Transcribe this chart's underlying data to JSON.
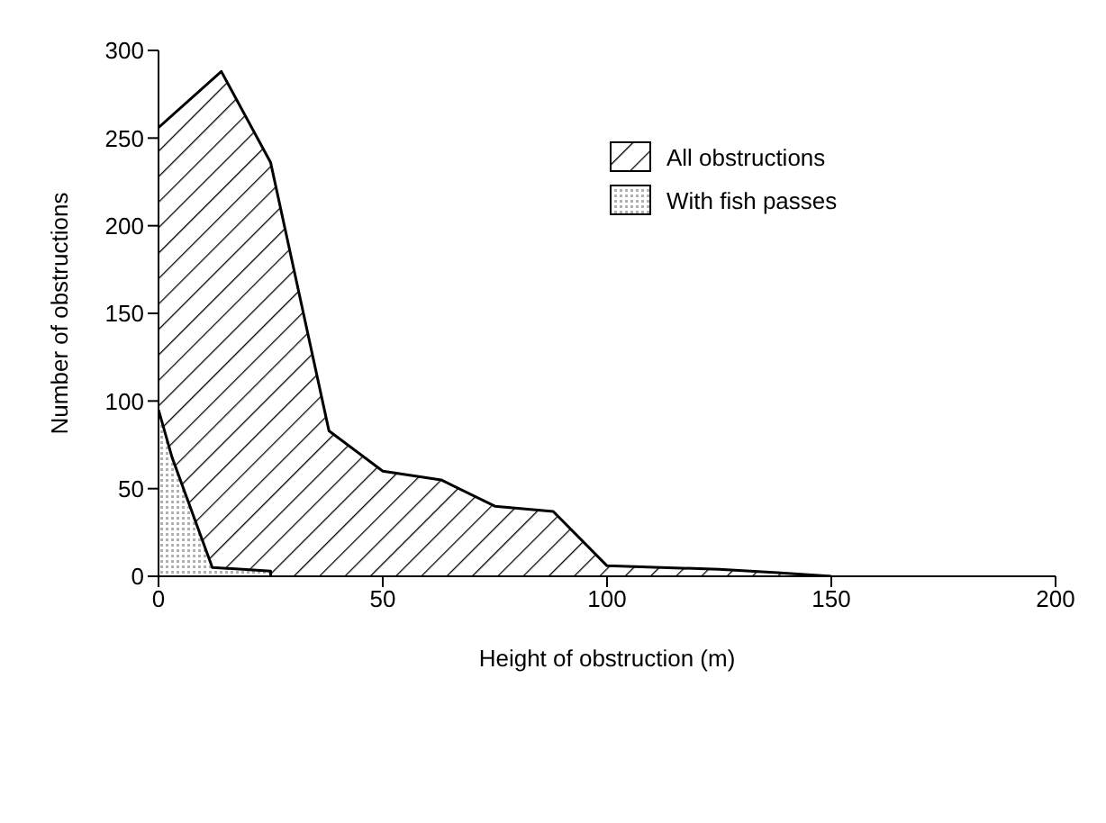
{
  "chart_data": {
    "type": "area",
    "xlabel": "Height of obstruction (m)",
    "ylabel": "Number of obstructions",
    "xlim": [
      0,
      200
    ],
    "xticks": [
      0,
      50,
      100,
      150,
      200
    ],
    "ylim": [
      0,
      300
    ],
    "yticks": [
      0,
      50,
      100,
      150,
      200,
      250,
      300
    ],
    "grid": false,
    "legend": "top right",
    "series": [
      {
        "name": "All obstructions",
        "color": "#000000",
        "x": [
          0,
          14,
          25,
          38,
          50,
          63,
          75,
          88,
          100,
          125,
          138,
          150
        ],
        "values": [
          256,
          288,
          236,
          83,
          60,
          55,
          40,
          37,
          6,
          4,
          2,
          0
        ]
      },
      {
        "name": "With fish passes",
        "color": "#b0b0b0",
        "x": [
          0,
          3,
          12,
          25,
          25
        ],
        "values": [
          95,
          68,
          5,
          3,
          0
        ]
      }
    ]
  }
}
